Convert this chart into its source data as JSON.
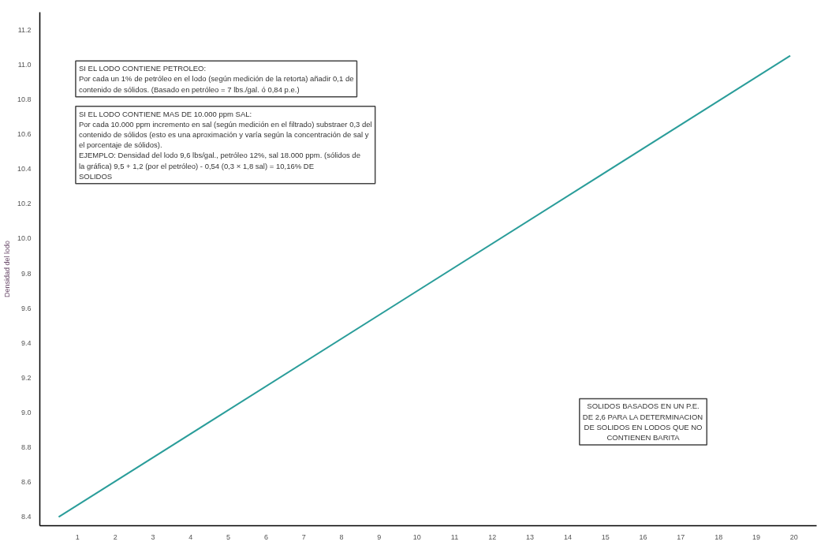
{
  "chart_data": {
    "type": "line",
    "ylabel": "Densidad del lodo",
    "x": [
      0.5,
      19.9
    ],
    "series": [
      {
        "color": "#2a9d9a",
        "values": [
          8.4,
          11.05
        ]
      }
    ],
    "xlim": [
      0,
      20.6
    ],
    "ylim": [
      8.35,
      11.3
    ],
    "xticks": [
      1,
      2,
      3,
      4,
      5,
      6,
      7,
      8,
      9,
      10,
      11,
      12,
      13,
      14,
      15,
      16,
      17,
      18,
      19,
      20
    ],
    "yticks": [
      {
        "value": 8.4,
        "label": "8.4"
      },
      {
        "value": 8.6,
        "label": "8.6"
      },
      {
        "value": 8.8,
        "label": "8.8"
      },
      {
        "value": 9.0,
        "label": "9.0"
      },
      {
        "value": 9.2,
        "label": "9.2"
      },
      {
        "value": 9.4,
        "label": "9.4"
      },
      {
        "value": 9.6,
        "label": "9.6"
      },
      {
        "value": 9.8,
        "label": "9.8"
      },
      {
        "value": 10.0,
        "label": "10.0"
      },
      {
        "value": 10.2,
        "label": "10.2"
      },
      {
        "value": 10.4,
        "label": "10.4"
      },
      {
        "value": 10.6,
        "label": "10.6"
      },
      {
        "value": 10.8,
        "label": "10.8"
      },
      {
        "value": 11.0,
        "label": "11.0"
      },
      {
        "value": 11.2,
        "label": "11.2"
      }
    ],
    "grid": false,
    "marker": "none",
    "line_style": "solid",
    "annotations": [
      "SI EL LODO CONTIENE PETROLEO:\nPor cada un 1% de petróleo en el lodo (según medición de la retorta) añadir 0,1 de\ncontenido de sólidos. (Basado en petróleo = 7 lbs./gal. ó 0,84 p.e.)",
      "SI EL LODO CONTIENE MAS DE 10.000 ppm SAL:\nPor cada 10.000 ppm incremento en sal (según medición en el filtrado) substraer 0,3 del\ncontenido de sólidos (esto es una aproximación y varía según la concentración de sal y\nel porcentaje de sólidos).\nEJEMPLO: Densidad del lodo 9,6 lbs/gal., petróleo 12%, sal 18.000 ppm. (sólidos de\n                  la gráfica) 9,5 + 1,2 (por el petróleo) - 0,54 (0,3 × 1,8 sal) = 10,16% DE\n                  SOLIDOS",
      "SOLIDOS BASADOS EN UN P.E.\nDE 2,6 PARA LA DETERMINACION\nDE SOLIDOS EN LODOS QUE NO\nCONTIENEN BARITA"
    ]
  }
}
